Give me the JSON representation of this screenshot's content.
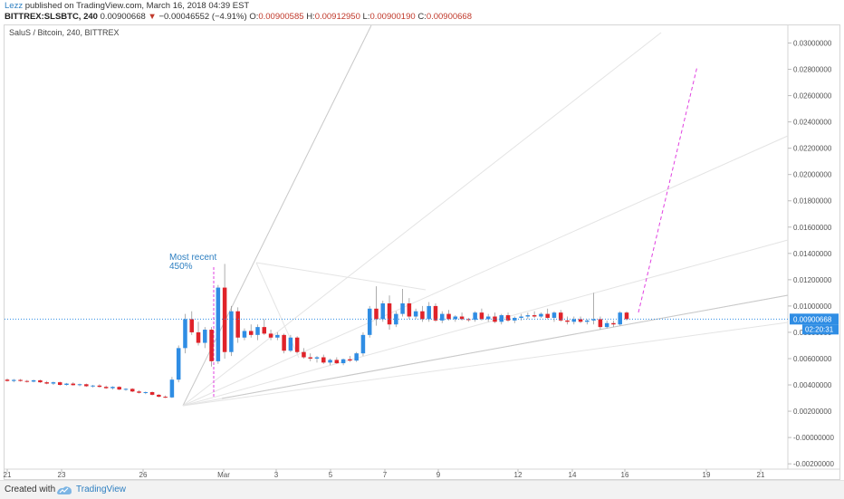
{
  "header": {
    "author": "Lezz",
    "published_text": "published on TradingView.com, March 16, 2018 04:39 EST",
    "symbol": "BITTREX:SLSBTC, 240",
    "last": "0.00900668",
    "change": "−0.00046552 (−4.91%)",
    "open_label": "O:",
    "open": "0.00900585",
    "high_label": "H:",
    "high": "0.00912950",
    "low_label": "L:",
    "low": "0.00900190",
    "close_label": "C:",
    "close": "0.00900668"
  },
  "chart_title": "SaluS / Bitcoin, 240, BITTREX",
  "footer": {
    "created": "Created with",
    "brand": "TradingView"
  },
  "colors": {
    "up": "#2f8de4",
    "down": "#e0232a",
    "accent": "#2d7fc1",
    "projection": "#e040e0",
    "price_line": "#2f8de4"
  },
  "chart_data": {
    "type": "candlestick",
    "title": "SaluS / Bitcoin, 240, BITTREX",
    "ylim": [
      -0.0022,
      0.031
    ],
    "y_ticks": [
      "0.03000000",
      "0.02800000",
      "0.02600000",
      "0.02400000",
      "0.02200000",
      "0.02000000",
      "0.01800000",
      "0.01600000",
      "0.01400000",
      "0.01200000",
      "0.01000000",
      "0.00800000",
      "0.00600000",
      "0.00400000",
      "0.00200000",
      "-0.00000000",
      "-0.00200000"
    ],
    "x_ticks": [
      "21",
      "23",
      "26",
      "Mar",
      "3",
      "5",
      "7",
      "9",
      "12",
      "14",
      "16",
      "19",
      "21"
    ],
    "last_price": "0.00900668",
    "countdown": "02:20:31",
    "annotation": {
      "text": "Most recent",
      "value": "450%"
    },
    "candles_ohlc": [
      [
        0.0044,
        0.0045,
        0.00425,
        0.0043
      ],
      [
        0.0043,
        0.00445,
        0.0042,
        0.00438
      ],
      [
        0.00438,
        0.00445,
        0.00425,
        0.0043
      ],
      [
        0.0043,
        0.00438,
        0.00418,
        0.00425
      ],
      [
        0.00425,
        0.0044,
        0.0042,
        0.00435
      ],
      [
        0.00435,
        0.0044,
        0.00415,
        0.0042
      ],
      [
        0.0042,
        0.0043,
        0.00405,
        0.0041
      ],
      [
        0.0041,
        0.00425,
        0.004,
        0.0042
      ],
      [
        0.0042,
        0.00425,
        0.00395,
        0.004
      ],
      [
        0.004,
        0.00415,
        0.00395,
        0.0041
      ],
      [
        0.0041,
        0.0042,
        0.00395,
        0.00398
      ],
      [
        0.00398,
        0.0041,
        0.0039,
        0.00405
      ],
      [
        0.00405,
        0.0041,
        0.00385,
        0.0039
      ],
      [
        0.0039,
        0.004,
        0.0038,
        0.00395
      ],
      [
        0.00395,
        0.00405,
        0.0038,
        0.00385
      ],
      [
        0.00385,
        0.00395,
        0.0037,
        0.00375
      ],
      [
        0.00375,
        0.0039,
        0.00365,
        0.00385
      ],
      [
        0.00385,
        0.0039,
        0.0036,
        0.00365
      ],
      [
        0.00365,
        0.00375,
        0.00355,
        0.0037
      ],
      [
        0.0037,
        0.00375,
        0.00345,
        0.0035
      ],
      [
        0.0035,
        0.0036,
        0.00335,
        0.0034
      ],
      [
        0.0034,
        0.0035,
        0.0033,
        0.00345
      ],
      [
        0.00345,
        0.0035,
        0.0032,
        0.00325
      ],
      [
        0.00325,
        0.0033,
        0.00305,
        0.0031
      ],
      [
        0.0031,
        0.0032,
        0.003,
        0.00305
      ],
      [
        0.00305,
        0.0046,
        0.003,
        0.0044
      ],
      [
        0.0044,
        0.007,
        0.0042,
        0.0068
      ],
      [
        0.0068,
        0.0094,
        0.0064,
        0.009
      ],
      [
        0.009,
        0.0096,
        0.0078,
        0.008
      ],
      [
        0.008,
        0.0088,
        0.007,
        0.0072
      ],
      [
        0.0072,
        0.0084,
        0.0068,
        0.0082
      ],
      [
        0.0082,
        0.0084,
        0.0054,
        0.0058
      ],
      [
        0.0058,
        0.0116,
        0.0056,
        0.0114
      ],
      [
        0.0114,
        0.0132,
        0.006,
        0.0065
      ],
      [
        0.0065,
        0.01,
        0.0062,
        0.0096
      ],
      [
        0.0096,
        0.0099,
        0.0072,
        0.0076
      ],
      [
        0.0076,
        0.0083,
        0.0074,
        0.0081
      ],
      [
        0.0081,
        0.0086,
        0.0076,
        0.0078
      ],
      [
        0.0078,
        0.0086,
        0.0074,
        0.0084
      ],
      [
        0.0084,
        0.009,
        0.0078,
        0.0079
      ],
      [
        0.0079,
        0.0082,
        0.0074,
        0.0076
      ],
      [
        0.0076,
        0.008,
        0.0074,
        0.0078
      ],
      [
        0.0078,
        0.0079,
        0.0064,
        0.0066
      ],
      [
        0.0066,
        0.0078,
        0.0065,
        0.0076
      ],
      [
        0.0076,
        0.0077,
        0.0064,
        0.0065
      ],
      [
        0.0065,
        0.0068,
        0.006,
        0.0061
      ],
      [
        0.0061,
        0.0064,
        0.0058,
        0.006
      ],
      [
        0.006,
        0.0062,
        0.0057,
        0.0061
      ],
      [
        0.0061,
        0.0063,
        0.0056,
        0.0057
      ],
      [
        0.0057,
        0.006,
        0.0055,
        0.0059
      ],
      [
        0.0059,
        0.0061,
        0.0056,
        0.00565
      ],
      [
        0.00565,
        0.006,
        0.0055,
        0.00595
      ],
      [
        0.00595,
        0.0062,
        0.00575,
        0.00585
      ],
      [
        0.00585,
        0.0065,
        0.00575,
        0.0064
      ],
      [
        0.0064,
        0.008,
        0.0062,
        0.0078
      ],
      [
        0.0078,
        0.01,
        0.0076,
        0.0098
      ],
      [
        0.0098,
        0.0115,
        0.0085,
        0.009
      ],
      [
        0.009,
        0.0104,
        0.0088,
        0.0102
      ],
      [
        0.0102,
        0.0108,
        0.0082,
        0.0086
      ],
      [
        0.0086,
        0.0096,
        0.0084,
        0.0094
      ],
      [
        0.0094,
        0.0113,
        0.0092,
        0.0102
      ],
      [
        0.0102,
        0.0106,
        0.009,
        0.0092
      ],
      [
        0.0092,
        0.0098,
        0.009,
        0.0096
      ],
      [
        0.0096,
        0.01,
        0.0088,
        0.009
      ],
      [
        0.009,
        0.0103,
        0.0088,
        0.01
      ],
      [
        0.01,
        0.0102,
        0.0088,
        0.0089
      ],
      [
        0.0089,
        0.0096,
        0.0087,
        0.0094
      ],
      [
        0.0094,
        0.0097,
        0.0089,
        0.009
      ],
      [
        0.009,
        0.0093,
        0.0088,
        0.0092
      ],
      [
        0.0092,
        0.0095,
        0.0089,
        0.009
      ],
      [
        0.009,
        0.0091,
        0.0088,
        0.00895
      ],
      [
        0.00895,
        0.0096,
        0.0088,
        0.0095
      ],
      [
        0.0095,
        0.0098,
        0.0089,
        0.009
      ],
      [
        0.009,
        0.0094,
        0.0088,
        0.0092
      ],
      [
        0.0092,
        0.0095,
        0.0087,
        0.0088
      ],
      [
        0.0088,
        0.0094,
        0.0086,
        0.0093
      ],
      [
        0.0093,
        0.0095,
        0.0088,
        0.0089
      ],
      [
        0.0089,
        0.0092,
        0.0087,
        0.0091
      ],
      [
        0.0091,
        0.0094,
        0.0089,
        0.0092
      ],
      [
        0.0092,
        0.0095,
        0.009,
        0.0093
      ],
      [
        0.0093,
        0.0096,
        0.0091,
        0.0092
      ],
      [
        0.0092,
        0.0095,
        0.0091,
        0.0094
      ],
      [
        0.0094,
        0.0098,
        0.009,
        0.0091
      ],
      [
        0.0091,
        0.0096,
        0.0088,
        0.0095
      ],
      [
        0.0095,
        0.0097,
        0.0088,
        0.0089
      ],
      [
        0.0089,
        0.0092,
        0.0086,
        0.0088
      ],
      [
        0.0088,
        0.0092,
        0.0086,
        0.009
      ],
      [
        0.009,
        0.0092,
        0.0087,
        0.0088
      ],
      [
        0.0088,
        0.009,
        0.0086,
        0.0089
      ],
      [
        0.0089,
        0.011,
        0.0086,
        0.009
      ],
      [
        0.009,
        0.0092,
        0.0082,
        0.0084
      ],
      [
        0.0084,
        0.0089,
        0.0083,
        0.0087
      ],
      [
        0.0087,
        0.0089,
        0.0084,
        0.0086
      ],
      [
        0.0086,
        0.0096,
        0.0085,
        0.0095
      ],
      [
        0.0095,
        0.0096,
        0.0089,
        0.009
      ]
    ],
    "candles_x_start": 8,
    "candles_x_end": 692
  }
}
